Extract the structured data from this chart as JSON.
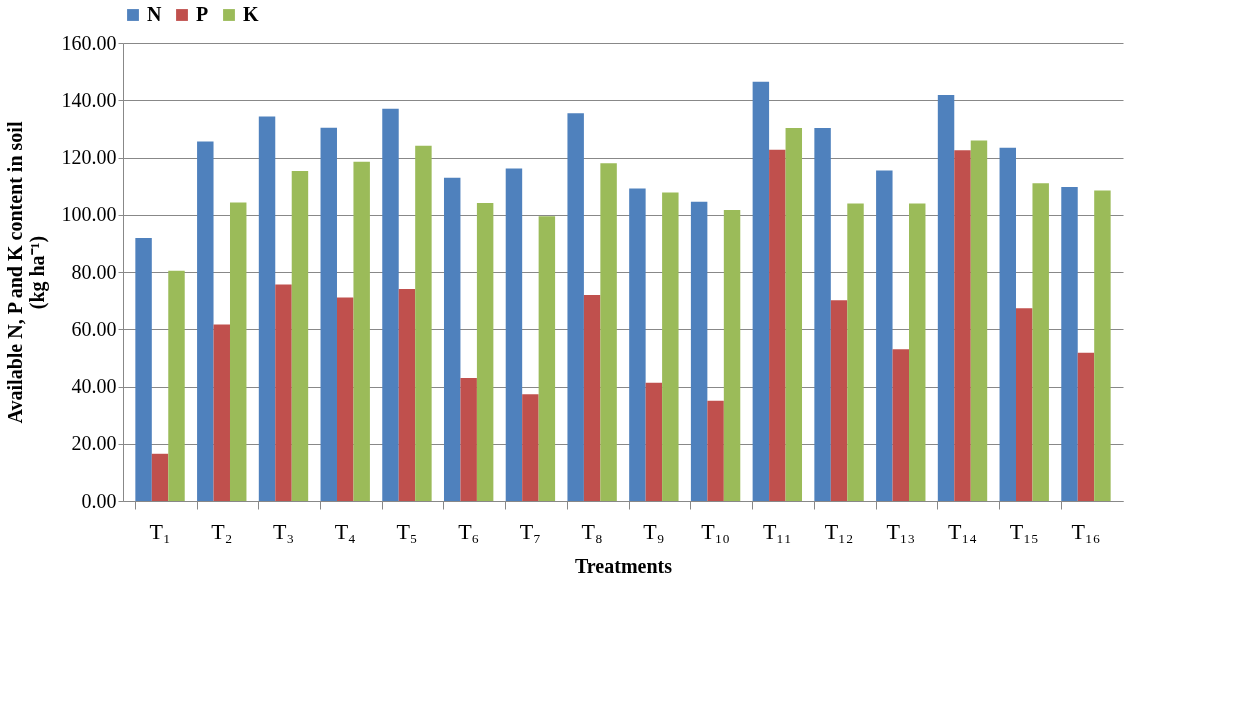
{
  "chart_data": {
    "type": "bar",
    "xlabel": "Treatments",
    "ylabel": "Available N, P and K content in soil\n(kg ha⁻¹)",
    "categories": [
      "T₁",
      "T₂",
      "T₃",
      "T₄",
      "T₅",
      "T₆",
      "T₇",
      "T₈",
      "T₉",
      "T₁₀",
      "T₁₁",
      "T₁₂",
      "T₁₃",
      "T₁₄",
      "T₁₅",
      "T₁₆"
    ],
    "series": [
      {
        "name": "N",
        "color": "#4f81bd",
        "values": [
          91.9,
          125.6,
          134.3,
          130.4,
          137.0,
          112.9,
          116.2,
          135.5,
          109.2,
          104.5,
          146.5,
          130.3,
          115.5,
          141.8,
          123.4,
          109.7
        ]
      },
      {
        "name": "P",
        "color": "#c0504d",
        "values": [
          16.5,
          61.7,
          75.6,
          71.1,
          74.1,
          43.0,
          37.3,
          72.0,
          41.3,
          35.0,
          122.7,
          70.1,
          53.0,
          122.5,
          67.3,
          51.8
        ]
      },
      {
        "name": "K",
        "color": "#9bbb59",
        "values": [
          80.4,
          104.3,
          115.3,
          118.5,
          124.1,
          104.1,
          99.5,
          118.0,
          107.8,
          101.7,
          130.3,
          103.9,
          103.9,
          125.9,
          111.0,
          108.5
        ]
      }
    ],
    "ylim": [
      0,
      160
    ],
    "yticks": [
      {
        "value": 0,
        "label": "0.00"
      },
      {
        "value": 20,
        "label": "20.00"
      },
      {
        "value": 40,
        "label": "40.00"
      },
      {
        "value": 60,
        "label": "60.00"
      },
      {
        "value": 80,
        "label": "80.00"
      },
      {
        "value": 100,
        "label": "100.00"
      },
      {
        "value": 120,
        "label": "120.00"
      },
      {
        "value": 140,
        "label": "140.00"
      },
      {
        "value": 160,
        "label": "160.00"
      }
    ],
    "grid": "y",
    "legend": "top"
  }
}
